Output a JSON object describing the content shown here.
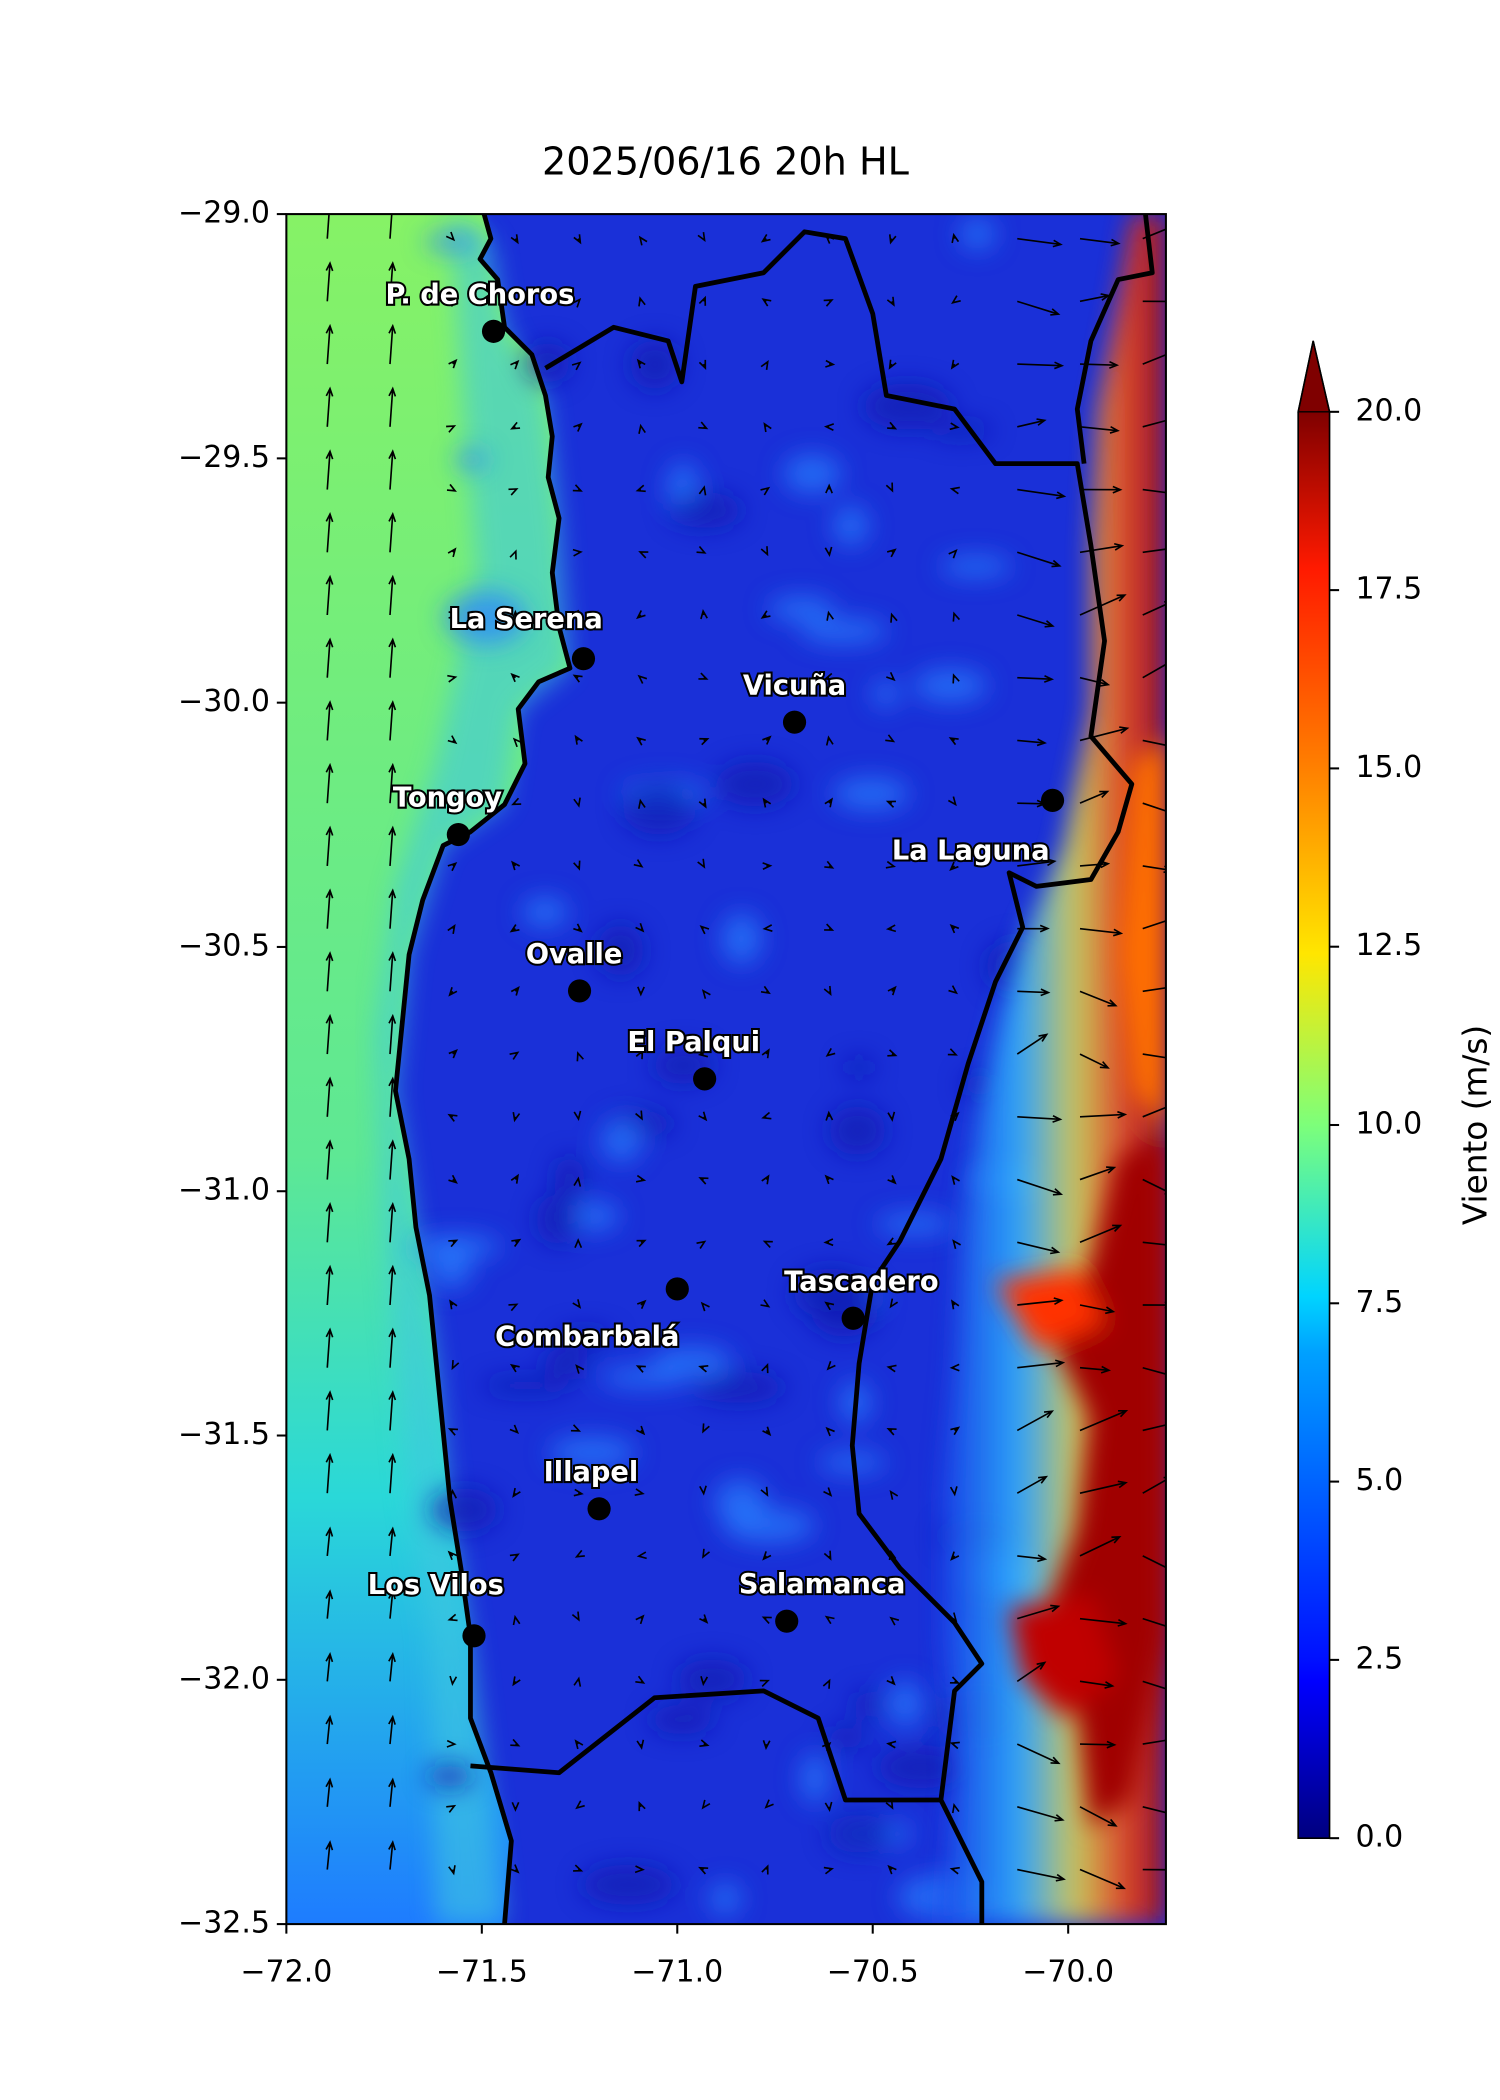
{
  "title": "2025/06/16 20h HL",
  "x_axis": {
    "lim": [
      -72.0,
      -69.75
    ],
    "ticks": [
      {
        "value": -72.0,
        "label": "−72.0"
      },
      {
        "value": -71.5,
        "label": "−71.5"
      },
      {
        "value": -71.0,
        "label": "−71.0"
      },
      {
        "value": -70.5,
        "label": "−70.5"
      },
      {
        "value": -70.0,
        "label": "−70.0"
      }
    ]
  },
  "y_axis": {
    "lim": [
      -32.5,
      -29.0
    ],
    "ticks": [
      {
        "value": -29.0,
        "label": "−29.0"
      },
      {
        "value": -29.5,
        "label": "−29.5"
      },
      {
        "value": -30.0,
        "label": "−30.0"
      },
      {
        "value": -30.5,
        "label": "−30.5"
      },
      {
        "value": -31.0,
        "label": "−31.0"
      },
      {
        "value": -31.5,
        "label": "−31.5"
      },
      {
        "value": -32.0,
        "label": "−32.0"
      },
      {
        "value": -32.5,
        "label": "−32.5"
      }
    ]
  },
  "colorbar": {
    "label": "Viento (m/s)",
    "lim": [
      0,
      20
    ],
    "ticks": [
      {
        "value": 0,
        "label": "0.0"
      },
      {
        "value": 2.5,
        "label": "2.5"
      },
      {
        "value": 5,
        "label": "5.0"
      },
      {
        "value": 7.5,
        "label": "7.5"
      },
      {
        "value": 10,
        "label": "10.0"
      },
      {
        "value": 12.5,
        "label": "12.5"
      },
      {
        "value": 15,
        "label": "15.0"
      },
      {
        "value": 17.5,
        "label": "17.5"
      },
      {
        "value": 20,
        "label": "20.0"
      }
    ]
  },
  "cities": [
    {
      "name": "P. de Choros",
      "lon": -71.47,
      "lat": -29.24
    },
    {
      "name": "La Serena",
      "lon": -71.24,
      "lat": -29.91
    },
    {
      "name": "Vicuña",
      "lon": -70.7,
      "lat": -30.04
    },
    {
      "name": "Tongoy",
      "lon": -71.56,
      "lat": -30.27
    },
    {
      "name": "La Laguna",
      "lon": -70.04,
      "lat": -30.2
    },
    {
      "name": "Ovalle",
      "lon": -71.25,
      "lat": -30.59
    },
    {
      "name": "El Palqui",
      "lon": -70.93,
      "lat": -30.77
    },
    {
      "name": "Combarbalá",
      "lon": -71.0,
      "lat": -31.2
    },
    {
      "name": "Tascadero",
      "lon": -70.55,
      "lat": -31.26
    },
    {
      "name": "Illapel",
      "lon": -71.2,
      "lat": -31.65
    },
    {
      "name": "Los Vilos",
      "lon": -71.52,
      "lat": -31.91
    },
    {
      "name": "Salamanca",
      "lon": -70.72,
      "lat": -31.88
    }
  ]
}
